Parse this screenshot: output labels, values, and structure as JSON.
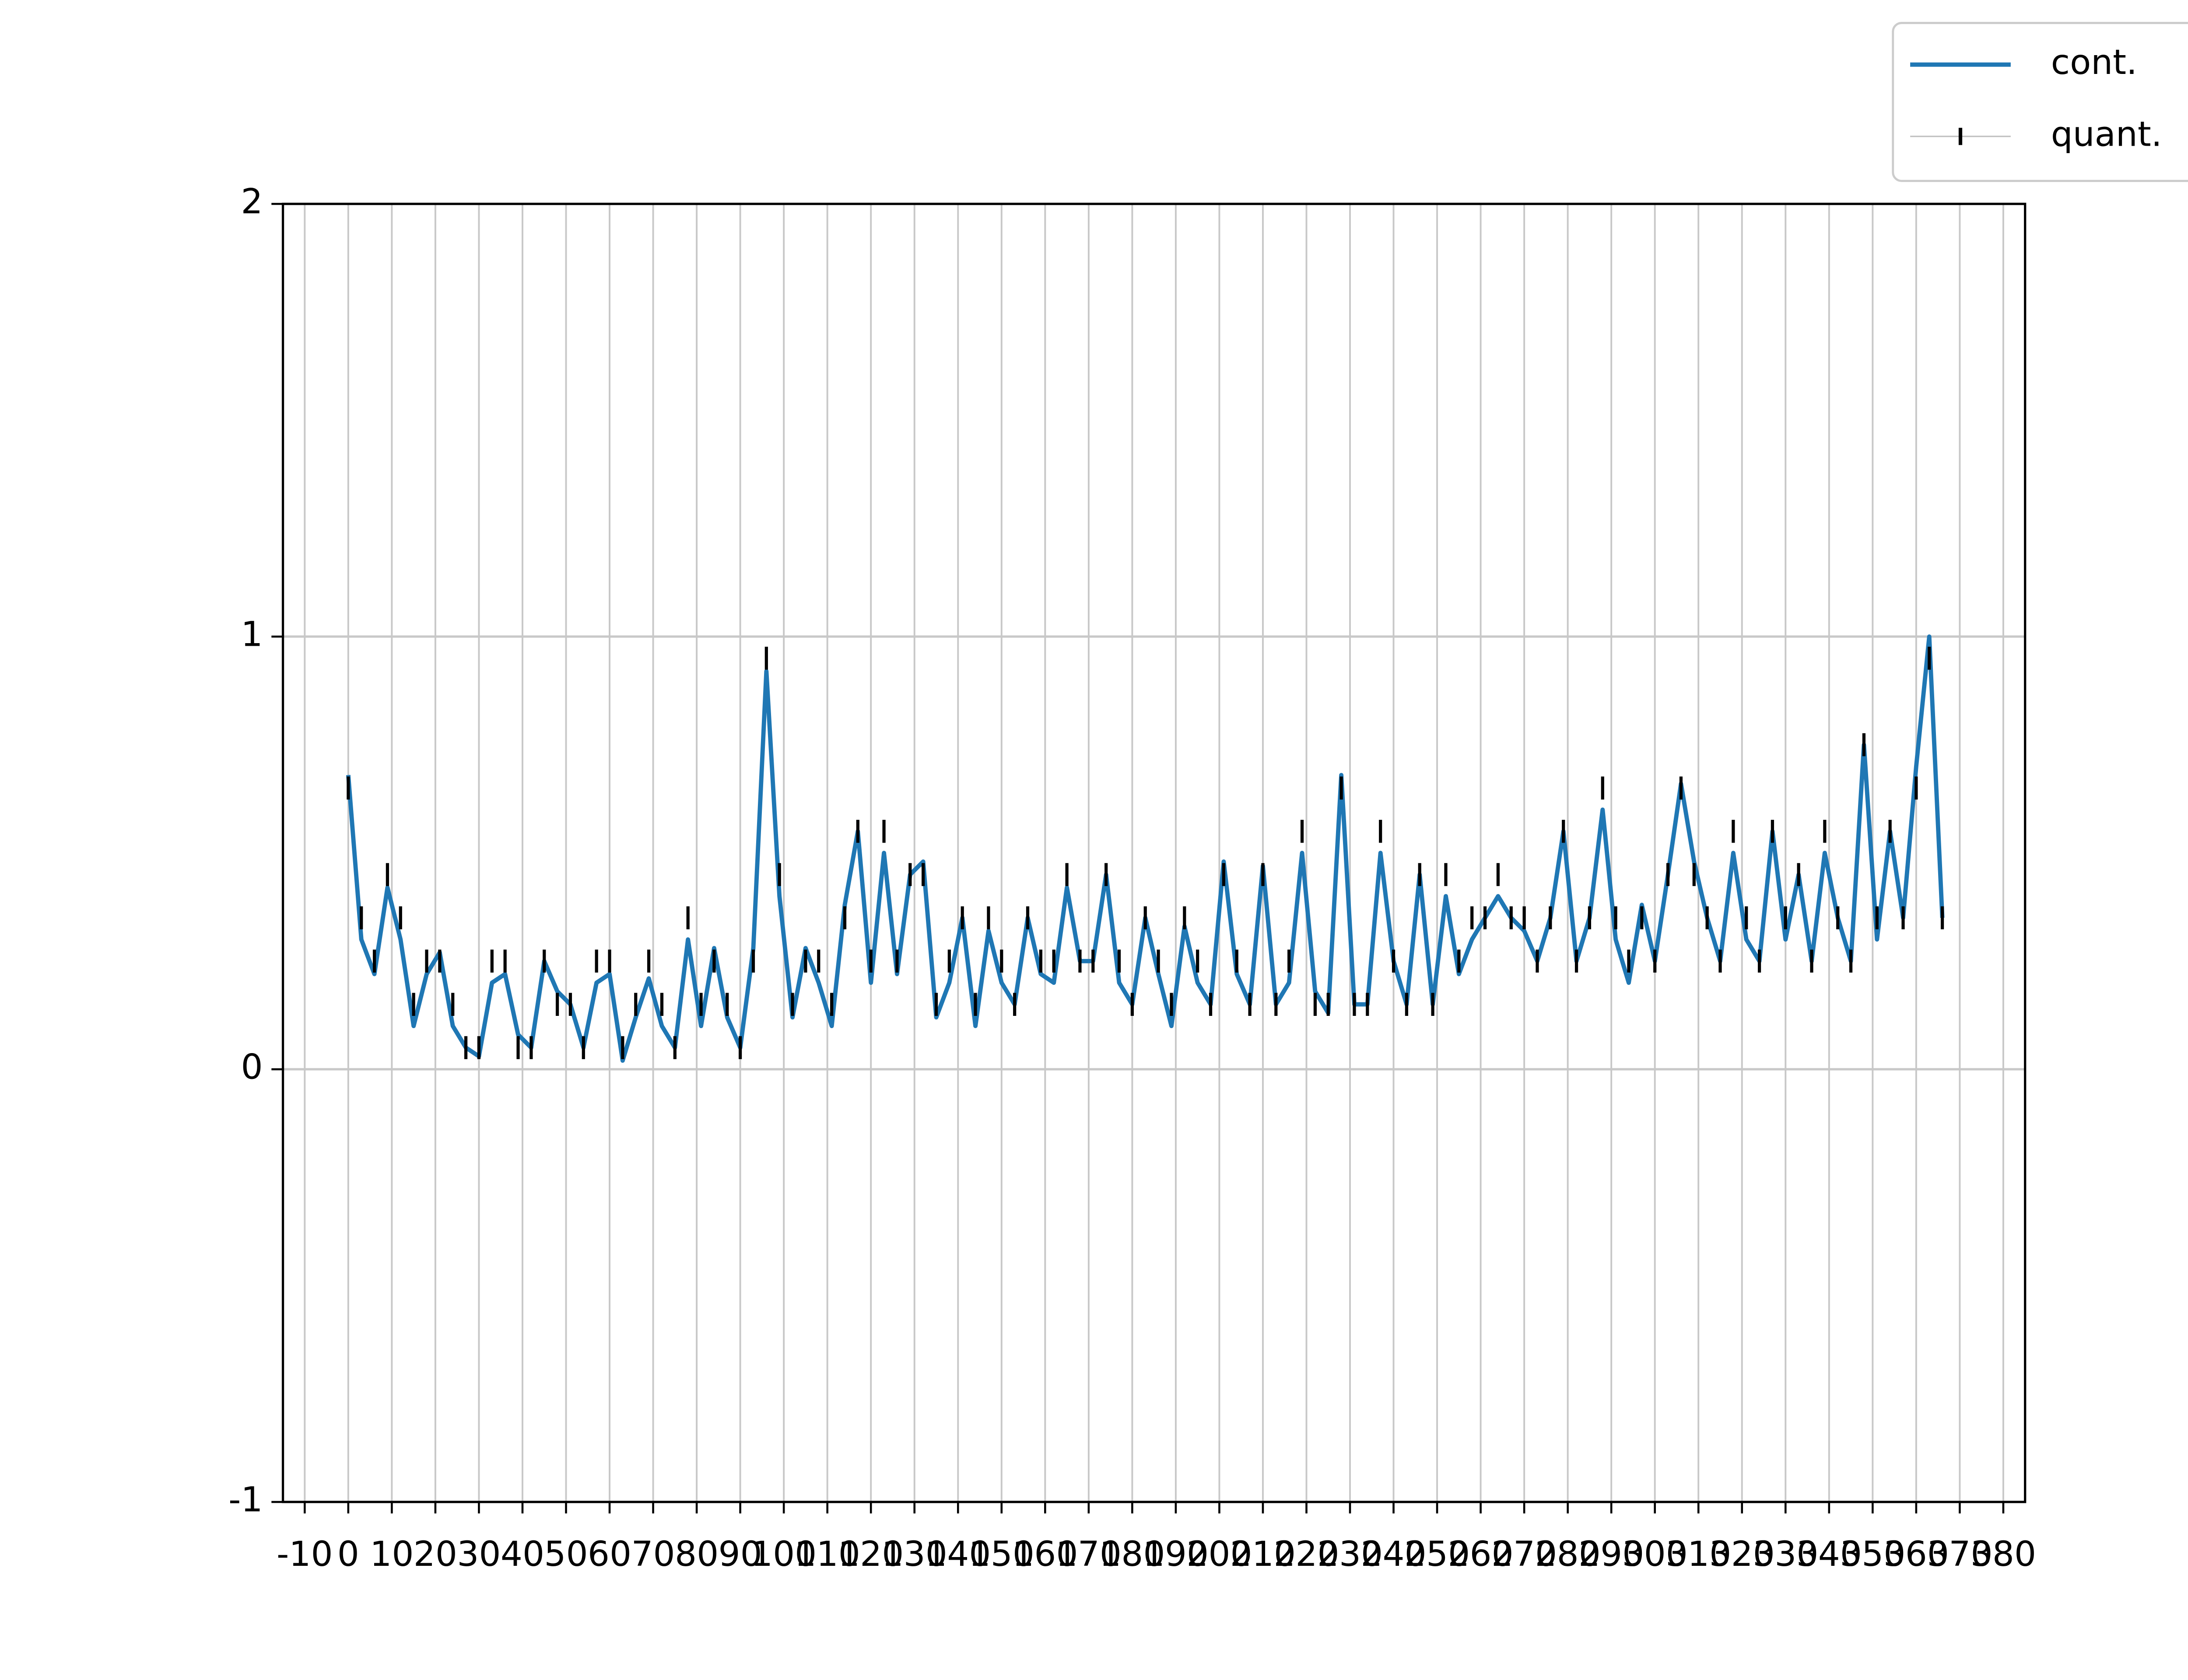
{
  "chart_data": {
    "type": "line",
    "x": [
      0,
      3,
      6,
      9,
      12,
      15,
      18,
      21,
      24,
      27,
      30,
      33,
      36,
      39,
      42,
      45,
      48,
      51,
      54,
      57,
      60,
      63,
      66,
      69,
      72,
      75,
      78,
      81,
      84,
      87,
      90,
      93,
      96,
      99,
      102,
      105,
      108,
      111,
      114,
      117,
      120,
      123,
      126,
      129,
      132,
      135,
      138,
      141,
      144,
      147,
      150,
      153,
      156,
      159,
      162,
      165,
      168,
      171,
      174,
      177,
      180,
      183,
      186,
      189,
      192,
      195,
      198,
      201,
      204,
      207,
      210,
      213,
      216,
      219,
      222,
      225,
      228,
      231,
      234,
      237,
      240,
      243,
      246,
      249,
      252,
      255,
      258,
      261,
      264,
      267,
      270,
      273,
      276,
      279,
      282,
      285,
      288,
      291,
      294,
      297,
      300,
      303,
      306,
      309,
      312,
      315,
      318,
      321,
      324,
      327,
      330,
      333,
      336,
      339,
      342,
      345,
      348,
      351,
      354,
      357,
      360,
      363,
      366
    ],
    "series": [
      {
        "name": "cont.",
        "color": "#1f77b4",
        "values": [
          0.68,
          0.3,
          0.22,
          0.42,
          0.3,
          0.1,
          0.22,
          0.27,
          0.1,
          0.05,
          0.03,
          0.2,
          0.22,
          0.08,
          0.05,
          0.25,
          0.18,
          0.15,
          0.05,
          0.2,
          0.22,
          0.02,
          0.12,
          0.21,
          0.1,
          0.05,
          0.3,
          0.1,
          0.28,
          0.12,
          0.05,
          0.28,
          0.92,
          0.4,
          0.12,
          0.28,
          0.2,
          0.1,
          0.38,
          0.55,
          0.2,
          0.5,
          0.22,
          0.45,
          0.48,
          0.12,
          0.2,
          0.35,
          0.1,
          0.32,
          0.2,
          0.15,
          0.35,
          0.22,
          0.2,
          0.42,
          0.25,
          0.25,
          0.45,
          0.2,
          0.15,
          0.35,
          0.22,
          0.1,
          0.33,
          0.2,
          0.15,
          0.48,
          0.22,
          0.15,
          0.47,
          0.15,
          0.2,
          0.5,
          0.18,
          0.13,
          0.68,
          0.15,
          0.15,
          0.5,
          0.25,
          0.15,
          0.45,
          0.15,
          0.4,
          0.22,
          0.3,
          0.35,
          0.4,
          0.35,
          0.32,
          0.25,
          0.35,
          0.55,
          0.25,
          0.35,
          0.6,
          0.3,
          0.2,
          0.38,
          0.25,
          0.45,
          0.66,
          0.48,
          0.35,
          0.25,
          0.5,
          0.3,
          0.25,
          0.55,
          0.3,
          0.45,
          0.25,
          0.5,
          0.35,
          0.25,
          0.75,
          0.3,
          0.55,
          0.35,
          0.7,
          1.0,
          0.35
        ]
      },
      {
        "name": "quant.",
        "color": "#000000",
        "marker": "|",
        "values": [
          0.65,
          0.35,
          0.25,
          0.45,
          0.35,
          0.15,
          0.25,
          0.25,
          0.15,
          0.05,
          0.05,
          0.25,
          0.25,
          0.05,
          0.05,
          0.25,
          0.15,
          0.15,
          0.05,
          0.25,
          0.25,
          0.05,
          0.15,
          0.25,
          0.15,
          0.05,
          0.35,
          0.15,
          0.25,
          0.15,
          0.05,
          0.25,
          0.95,
          0.45,
          0.15,
          0.25,
          0.25,
          0.15,
          0.35,
          0.55,
          0.25,
          0.55,
          0.25,
          0.45,
          0.45,
          0.15,
          0.25,
          0.35,
          0.15,
          0.35,
          0.25,
          0.15,
          0.35,
          0.25,
          0.25,
          0.45,
          0.25,
          0.25,
          0.45,
          0.25,
          0.15,
          0.35,
          0.25,
          0.15,
          0.35,
          0.25,
          0.15,
          0.45,
          0.25,
          0.15,
          0.45,
          0.15,
          0.25,
          0.55,
          0.15,
          0.15,
          0.65,
          0.15,
          0.15,
          0.55,
          0.25,
          0.15,
          0.45,
          0.15,
          0.45,
          0.25,
          0.35,
          0.35,
          0.45,
          0.35,
          0.35,
          0.25,
          0.35,
          0.55,
          0.25,
          0.35,
          0.65,
          0.35,
          0.25,
          0.35,
          0.25,
          0.45,
          0.65,
          0.45,
          0.35,
          0.25,
          0.55,
          0.35,
          0.25,
          0.55,
          0.35,
          0.45,
          0.25,
          0.55,
          0.35,
          0.25,
          0.75,
          0.35,
          0.55,
          0.35,
          0.65,
          0.95,
          0.35
        ]
      }
    ],
    "xlim": [
      -15,
      385
    ],
    "xticks": [
      -10,
      0,
      10,
      20,
      30,
      40,
      50,
      60,
      70,
      80,
      90,
      100,
      110,
      120,
      130,
      140,
      150,
      160,
      170,
      180,
      190,
      200,
      210,
      220,
      230,
      240,
      250,
      260,
      270,
      280,
      290,
      300,
      310,
      320,
      330,
      340,
      350,
      360,
      370,
      380
    ],
    "ylim": [
      -1,
      2
    ],
    "yticks": [
      -1,
      0,
      1,
      2
    ],
    "grid": true,
    "legend": "upper right"
  }
}
